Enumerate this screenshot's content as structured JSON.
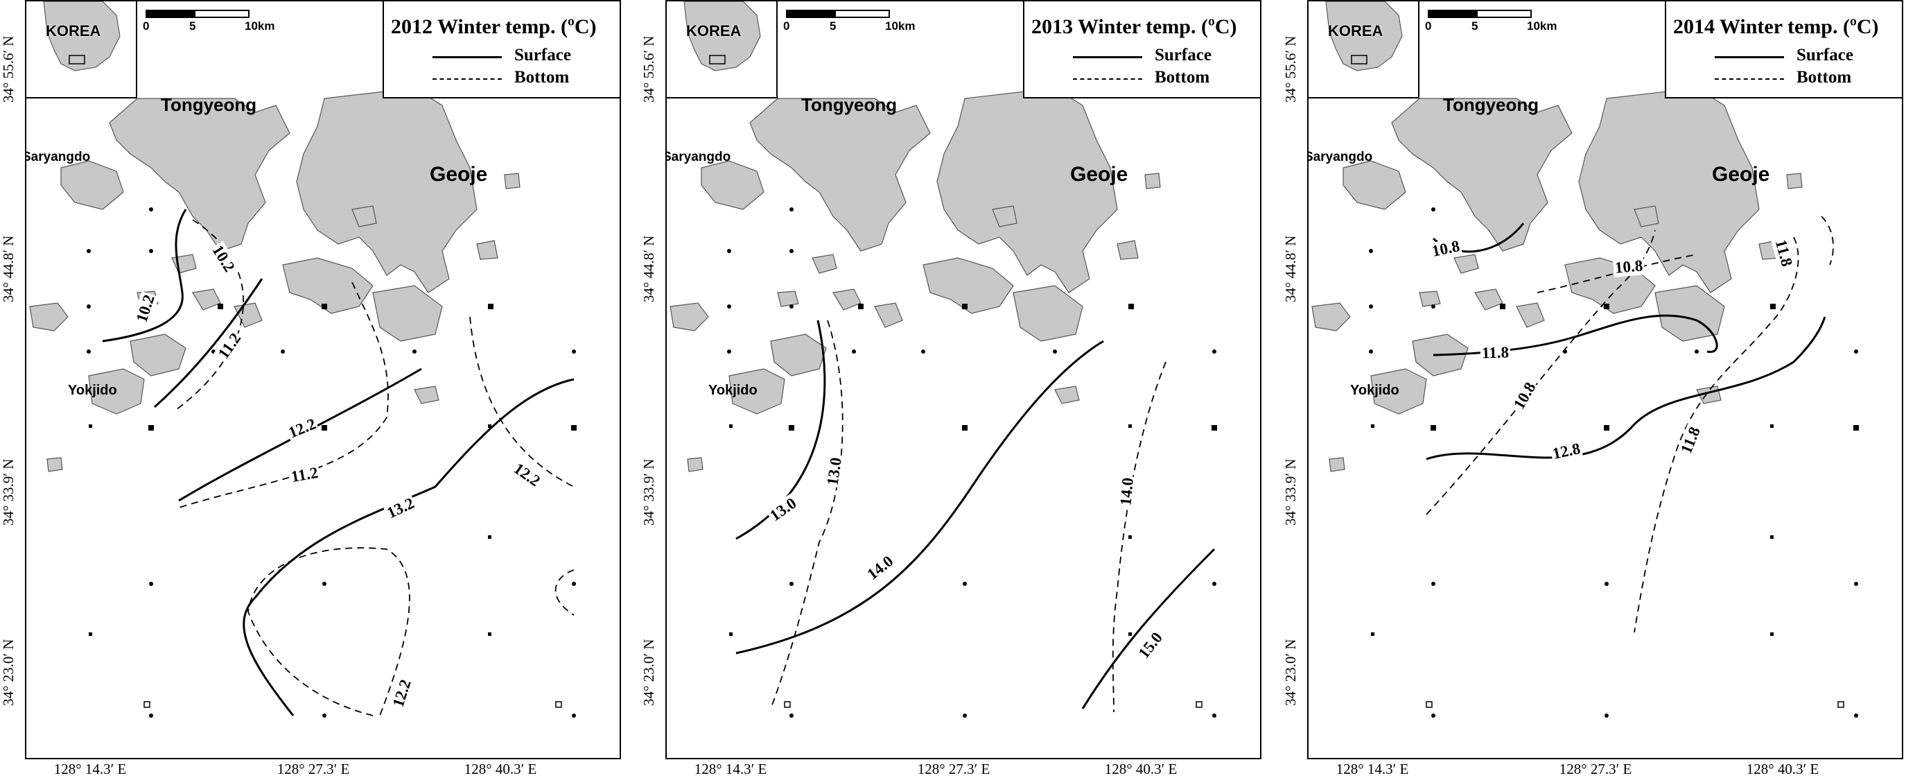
{
  "figure": {
    "panels": [
      {
        "title": "2012 Winter temp. (ºC)",
        "legend": {
          "surface": "Surface",
          "bottom": "Bottom"
        },
        "inset": {
          "label": "KOREA"
        },
        "scale": {
          "t0": "0",
          "t1": "5",
          "t2": "10km"
        },
        "places": {
          "tongyeong": "Tongyeong",
          "geoje": "Geoje",
          "saryangdo": "Saryangdo",
          "yokjido": "Yokjido"
        },
        "isotherms": [
          {
            "layer": "Surface",
            "label": "10.2"
          },
          {
            "layer": "Bottom",
            "label": "10.2"
          },
          {
            "layer": "Surface",
            "label": "11.2"
          },
          {
            "layer": "Bottom",
            "label": "11.2"
          },
          {
            "layer": "Surface",
            "label": "12.2"
          },
          {
            "layer": "Bottom",
            "label": "12.2"
          },
          {
            "layer": "Surface",
            "label": "13.2"
          },
          {
            "layer": "Bottom",
            "label": "12.2"
          }
        ]
      },
      {
        "title": "2013 Winter temp. (ºC)",
        "legend": {
          "surface": "Surface",
          "bottom": "Bottom"
        },
        "inset": {
          "label": "KOREA"
        },
        "scale": {
          "t0": "0",
          "t1": "5",
          "t2": "10km"
        },
        "places": {
          "tongyeong": "Tongyeong",
          "geoje": "Geoje",
          "saryangdo": "Saryangdo",
          "yokjido": "Yokjido"
        },
        "isotherms": [
          {
            "layer": "Surface",
            "label": "13.0"
          },
          {
            "layer": "Bottom",
            "label": "13.0"
          },
          {
            "layer": "Surface",
            "label": "14.0"
          },
          {
            "layer": "Bottom",
            "label": "14.0"
          },
          {
            "layer": "Surface",
            "label": "15.0"
          }
        ]
      },
      {
        "title": "2014 Winter temp. (ºC)",
        "legend": {
          "surface": "Surface",
          "bottom": "Bottom"
        },
        "inset": {
          "label": "KOREA"
        },
        "scale": {
          "t0": "0",
          "t1": "5",
          "t2": "10km"
        },
        "places": {
          "tongyeong": "Tongyeong",
          "geoje": "Geoje",
          "saryangdo": "Saryangdo",
          "yokjido": "Yokjido"
        },
        "isotherms": [
          {
            "layer": "Surface",
            "label": "10.8"
          },
          {
            "layer": "Bottom",
            "label": "10.8"
          },
          {
            "layer": "Bottom",
            "label": "11.8"
          },
          {
            "layer": "Surface",
            "label": "11.8"
          },
          {
            "layer": "Bottom",
            "label": "10.8"
          },
          {
            "layer": "Surface",
            "label": "12.8"
          },
          {
            "layer": "Bottom",
            "label": "11.8"
          }
        ]
      }
    ],
    "y_ticks": [
      "34° 55.6′ N",
      "34° 44.8′ N",
      "34° 33.9′ N",
      "34° 23.0′ N"
    ],
    "x_ticks": [
      "128° 14.3′ E",
      "128° 27.3′ E",
      "128° 40.3′ E"
    ],
    "colors": {
      "land": "#c8c8c8",
      "line": "#000000",
      "background": "#ffffff"
    }
  }
}
